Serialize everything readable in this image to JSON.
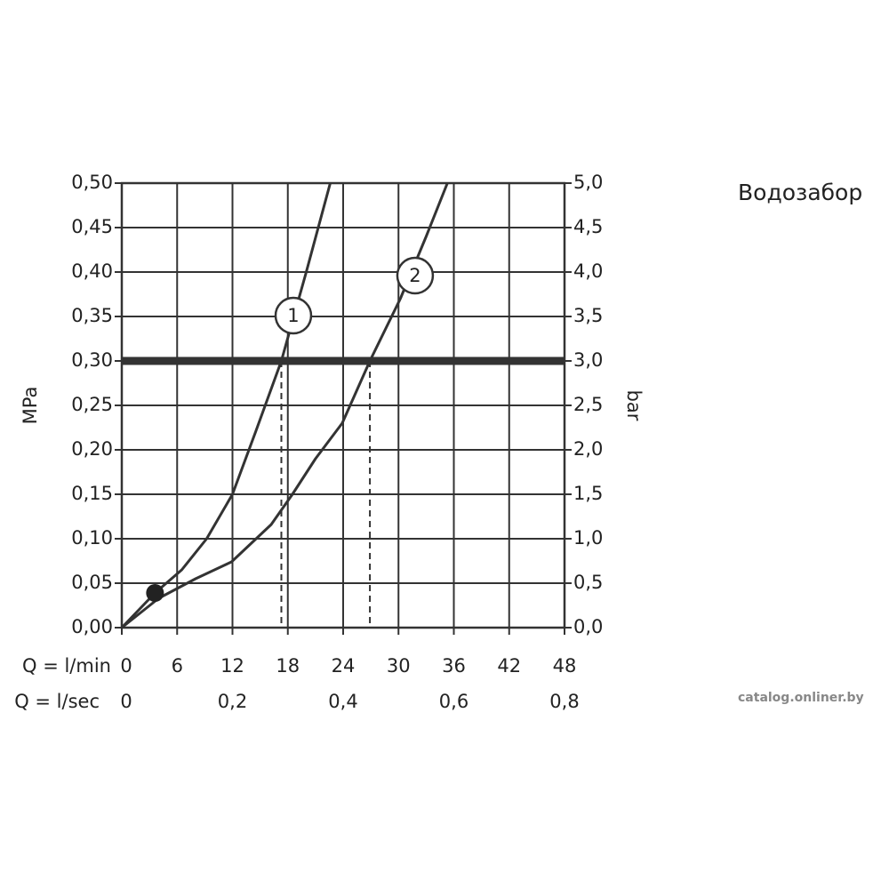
{
  "chart_data": {
    "type": "line",
    "title": "Водозабор",
    "watermark": "catalog.onliner.by",
    "xlabel": "Q = l/min",
    "x2label": "Q = l/sec",
    "ylabel": "MPa",
    "y2label": "bar",
    "xlim": [
      0,
      48
    ],
    "xticks": [
      0,
      6,
      12,
      18,
      24,
      30,
      36,
      42,
      48
    ],
    "x2lim": [
      0,
      0.8
    ],
    "x2ticks": [
      {
        "value": 0,
        "label": "0"
      },
      {
        "value": 0.2,
        "label": "0,2"
      },
      {
        "value": 0.4,
        "label": "0,4"
      },
      {
        "value": 0.6,
        "label": "0,6"
      },
      {
        "value": 0.8,
        "label": "0,8"
      }
    ],
    "ylim": [
      0,
      0.5
    ],
    "yticks": [
      {
        "value": 0,
        "label": "0,00"
      },
      {
        "value": 0.05,
        "label": "0,05"
      },
      {
        "value": 0.1,
        "label": "0,10"
      },
      {
        "value": 0.15,
        "label": "0,15"
      },
      {
        "value": 0.2,
        "label": "0,20"
      },
      {
        "value": 0.25,
        "label": "0,25"
      },
      {
        "value": 0.3,
        "label": "0,30"
      },
      {
        "value": 0.35,
        "label": "0,35"
      },
      {
        "value": 0.4,
        "label": "0,40"
      },
      {
        "value": 0.45,
        "label": "0,45"
      },
      {
        "value": 0.5,
        "label": "0,50"
      }
    ],
    "y2lim": [
      0,
      5
    ],
    "y2ticks": [
      {
        "value": 0,
        "label": "0,0"
      },
      {
        "value": 0.5,
        "label": "0,5"
      },
      {
        "value": 1,
        "label": "1,0"
      },
      {
        "value": 1.5,
        "label": "1,5"
      },
      {
        "value": 2,
        "label": "2,0"
      },
      {
        "value": 2.5,
        "label": "2,5"
      },
      {
        "value": 3,
        "label": "3,0"
      },
      {
        "value": 3.5,
        "label": "3,5"
      },
      {
        "value": 4,
        "label": "4,0"
      },
      {
        "value": 4.5,
        "label": "4,5"
      },
      {
        "value": 5,
        "label": "5,0"
      }
    ],
    "grid": true,
    "reference_y": 0.3,
    "drop_lines_x": [
      17.3,
      26.9
    ],
    "point": {
      "x": 3.6,
      "y": 0.039
    },
    "series": [
      {
        "name": "1",
        "color": "#333333",
        "label_x": 18.6,
        "label_y": 0.351,
        "x": [
          0,
          3.6,
          6.5,
          9.2,
          12.0,
          14.5,
          17.3,
          20.0,
          22.6
        ],
        "values": [
          0,
          0.039,
          0.065,
          0.1,
          0.15,
          0.22,
          0.3,
          0.4,
          0.5
        ]
      },
      {
        "name": "2",
        "color": "#333333",
        "label_x": 31.8,
        "label_y": 0.396,
        "x": [
          0,
          4,
          8,
          11.9,
          16.2,
          18.5,
          21,
          23.9,
          26.9,
          30.2,
          33,
          35.3
        ],
        "values": [
          0,
          0.033,
          0.055,
          0.074,
          0.116,
          0.15,
          0.19,
          0.23,
          0.3,
          0.37,
          0.44,
          0.5
        ]
      }
    ]
  }
}
